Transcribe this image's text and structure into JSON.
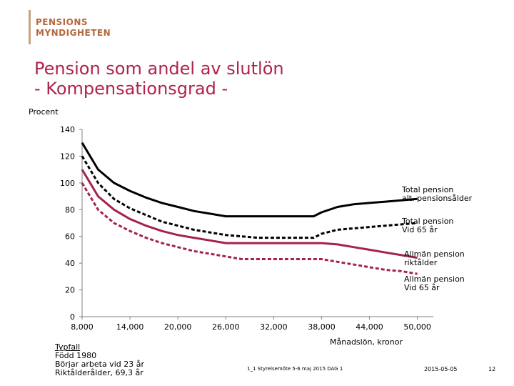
{
  "logo": {
    "line1": "PENSIONS",
    "line2": "MYNDIGHETEN"
  },
  "title": {
    "line1": "Pension som andel av slutlön",
    "line2": "- Kompensationsgrad -"
  },
  "footer": {
    "typfall": [
      "Typfall",
      "Född 1980",
      "Börjar arbeta vid 23 år",
      "Riktålderålder, 69,3 år"
    ],
    "center": "1_1 Styrelsemöte 5-6 maj 2015 DAG 1",
    "date": "2015-05-05",
    "page": "12"
  },
  "chart_data": {
    "type": "line",
    "ylabel": "Procent",
    "xlabel": "Månadslön, kronor",
    "ylim": [
      0,
      140
    ],
    "xlim": [
      8000,
      52000
    ],
    "yticks": [
      0,
      20,
      40,
      60,
      80,
      100,
      120,
      140
    ],
    "ytick_labels": [
      "0",
      "20",
      "40",
      "60",
      "80",
      "100",
      "120",
      "140"
    ],
    "xticks": [
      8000,
      14000,
      20000,
      26000,
      32000,
      38000,
      44000,
      50000
    ],
    "xtick_labels": [
      "8,000",
      "14,000",
      "20,000",
      "26,000",
      "32,000",
      "38,000",
      "44,000",
      "50,000"
    ],
    "grid": false,
    "series": [
      {
        "name": "Total pension alt. pensionsålder",
        "color": "#000000",
        "dash": "solid",
        "points": [
          [
            8000,
            130
          ],
          [
            10000,
            110
          ],
          [
            12000,
            100
          ],
          [
            14000,
            94
          ],
          [
            16000,
            89
          ],
          [
            18000,
            85
          ],
          [
            20000,
            82
          ],
          [
            22000,
            79
          ],
          [
            24000,
            77
          ],
          [
            26000,
            75
          ],
          [
            28000,
            75
          ],
          [
            30000,
            75
          ],
          [
            32000,
            75
          ],
          [
            34000,
            75
          ],
          [
            36000,
            75
          ],
          [
            37000,
            75
          ],
          [
            38000,
            78
          ],
          [
            40000,
            82
          ],
          [
            42000,
            84
          ],
          [
            44000,
            85
          ],
          [
            46000,
            86
          ],
          [
            48000,
            87
          ],
          [
            50000,
            88
          ]
        ]
      },
      {
        "name": "Total pension Vid 65 år",
        "color": "#000000",
        "dash": "dashed",
        "points": [
          [
            8000,
            120
          ],
          [
            10000,
            100
          ],
          [
            12000,
            88
          ],
          [
            14000,
            81
          ],
          [
            16000,
            76
          ],
          [
            18000,
            71
          ],
          [
            20000,
            68
          ],
          [
            22000,
            65
          ],
          [
            24000,
            63
          ],
          [
            26000,
            61
          ],
          [
            28000,
            60
          ],
          [
            30000,
            59
          ],
          [
            32000,
            59
          ],
          [
            34000,
            59
          ],
          [
            36000,
            59
          ],
          [
            37000,
            59
          ],
          [
            38000,
            62
          ],
          [
            40000,
            65
          ],
          [
            42000,
            66
          ],
          [
            44000,
            67
          ],
          [
            46000,
            68
          ],
          [
            48000,
            69
          ],
          [
            50000,
            70
          ]
        ]
      },
      {
        "name": "Allmän pension riktålder",
        "color": "#a4234a",
        "dash": "solid",
        "points": [
          [
            8000,
            110
          ],
          [
            10000,
            90
          ],
          [
            12000,
            80
          ],
          [
            14000,
            73
          ],
          [
            16000,
            68
          ],
          [
            18000,
            64
          ],
          [
            20000,
            61
          ],
          [
            22000,
            59
          ],
          [
            24000,
            57
          ],
          [
            26000,
            55
          ],
          [
            28000,
            55
          ],
          [
            30000,
            55
          ],
          [
            32000,
            55
          ],
          [
            34000,
            55
          ],
          [
            36000,
            55
          ],
          [
            38000,
            55
          ],
          [
            40000,
            54
          ],
          [
            42000,
            52
          ],
          [
            44000,
            50
          ],
          [
            46000,
            48
          ],
          [
            48000,
            46
          ],
          [
            50000,
            44
          ]
        ]
      },
      {
        "name": "Allmän pension Vid 65 år",
        "color": "#a4234a",
        "dash": "dashed",
        "points": [
          [
            8000,
            100
          ],
          [
            10000,
            80
          ],
          [
            12000,
            70
          ],
          [
            14000,
            64
          ],
          [
            16000,
            59
          ],
          [
            18000,
            55
          ],
          [
            20000,
            52
          ],
          [
            22000,
            49
          ],
          [
            24000,
            47
          ],
          [
            26000,
            45
          ],
          [
            28000,
            43
          ],
          [
            30000,
            43
          ],
          [
            32000,
            43
          ],
          [
            34000,
            43
          ],
          [
            36000,
            43
          ],
          [
            38000,
            43
          ],
          [
            40000,
            41
          ],
          [
            42000,
            39
          ],
          [
            44000,
            37
          ],
          [
            46000,
            35
          ],
          [
            48000,
            34
          ],
          [
            50000,
            32
          ]
        ]
      }
    ],
    "legend": [
      {
        "line1": "Total pension",
        "line2": "alt. pensionsålder"
      },
      {
        "line1": "Total pension",
        "line2": "Vid 65 år"
      },
      {
        "line1": "Allmän pension",
        "line2": "riktålder"
      },
      {
        "line1": "Allmän pension",
        "line2": "Vid 65 år"
      }
    ]
  }
}
